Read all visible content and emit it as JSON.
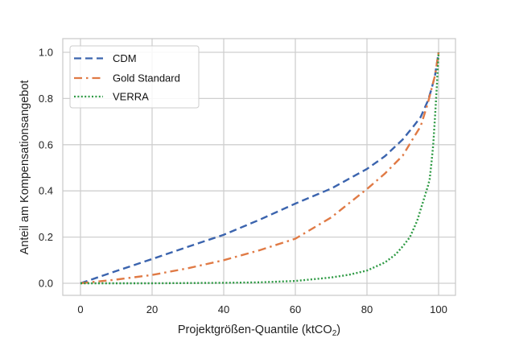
{
  "chart_data": {
    "type": "line",
    "title": "",
    "xlabel": "Projektgrößen-Quantile (ktCO",
    "xlabel_sub": "2",
    "xlabel_suffix": ")",
    "ylabel": "Anteil am Kompensationsangebot",
    "xlim": [
      -5,
      105
    ],
    "ylim": [
      -0.05,
      1.05
    ],
    "xticks": [
      0,
      20,
      40,
      60,
      80,
      100
    ],
    "xtick_labels": [
      "0",
      "20",
      "40",
      "60",
      "80",
      "100"
    ],
    "yticks": [
      0.0,
      0.2,
      0.4,
      0.6,
      0.8,
      1.0
    ],
    "ytick_labels": [
      "0.0",
      "0.2",
      "0.4",
      "0.6",
      "0.8",
      "1.0"
    ],
    "grid": true,
    "legend_position": "top-left",
    "series": [
      {
        "name": "CDM",
        "color": "#3b64ae",
        "style": "dashed",
        "x": [
          0,
          10,
          20,
          30,
          40,
          50,
          60,
          70,
          80,
          85,
          90,
          93,
          95,
          97,
          98,
          99,
          100
        ],
        "y": [
          0.0,
          0.053,
          0.105,
          0.158,
          0.21,
          0.275,
          0.345,
          0.41,
          0.495,
          0.55,
          0.623,
          0.68,
          0.72,
          0.79,
          0.84,
          0.9,
          1.0
        ]
      },
      {
        "name": "Gold Standard",
        "color": "#e07a45",
        "style": "dashdot",
        "x": [
          0,
          10,
          20,
          30,
          40,
          50,
          60,
          70,
          80,
          85,
          90,
          93,
          95,
          97,
          98,
          99,
          100
        ],
        "y": [
          0.0,
          0.016,
          0.036,
          0.065,
          0.1,
          0.143,
          0.193,
          0.285,
          0.408,
          0.475,
          0.553,
          0.63,
          0.68,
          0.78,
          0.84,
          0.9,
          1.0
        ]
      },
      {
        "name": "VERRA",
        "color": "#2e9a44",
        "style": "dotted",
        "x": [
          0,
          20,
          40,
          50,
          60,
          70,
          75,
          80,
          85,
          88,
          90,
          92,
          94,
          95,
          96,
          97,
          97.5,
          98,
          98.5,
          99,
          99.5,
          100
        ],
        "y": [
          0.0,
          0.0,
          0.002,
          0.004,
          0.01,
          0.025,
          0.037,
          0.055,
          0.09,
          0.125,
          0.16,
          0.2,
          0.27,
          0.32,
          0.37,
          0.42,
          0.45,
          0.52,
          0.6,
          0.72,
          0.85,
          1.0
        ]
      }
    ]
  }
}
